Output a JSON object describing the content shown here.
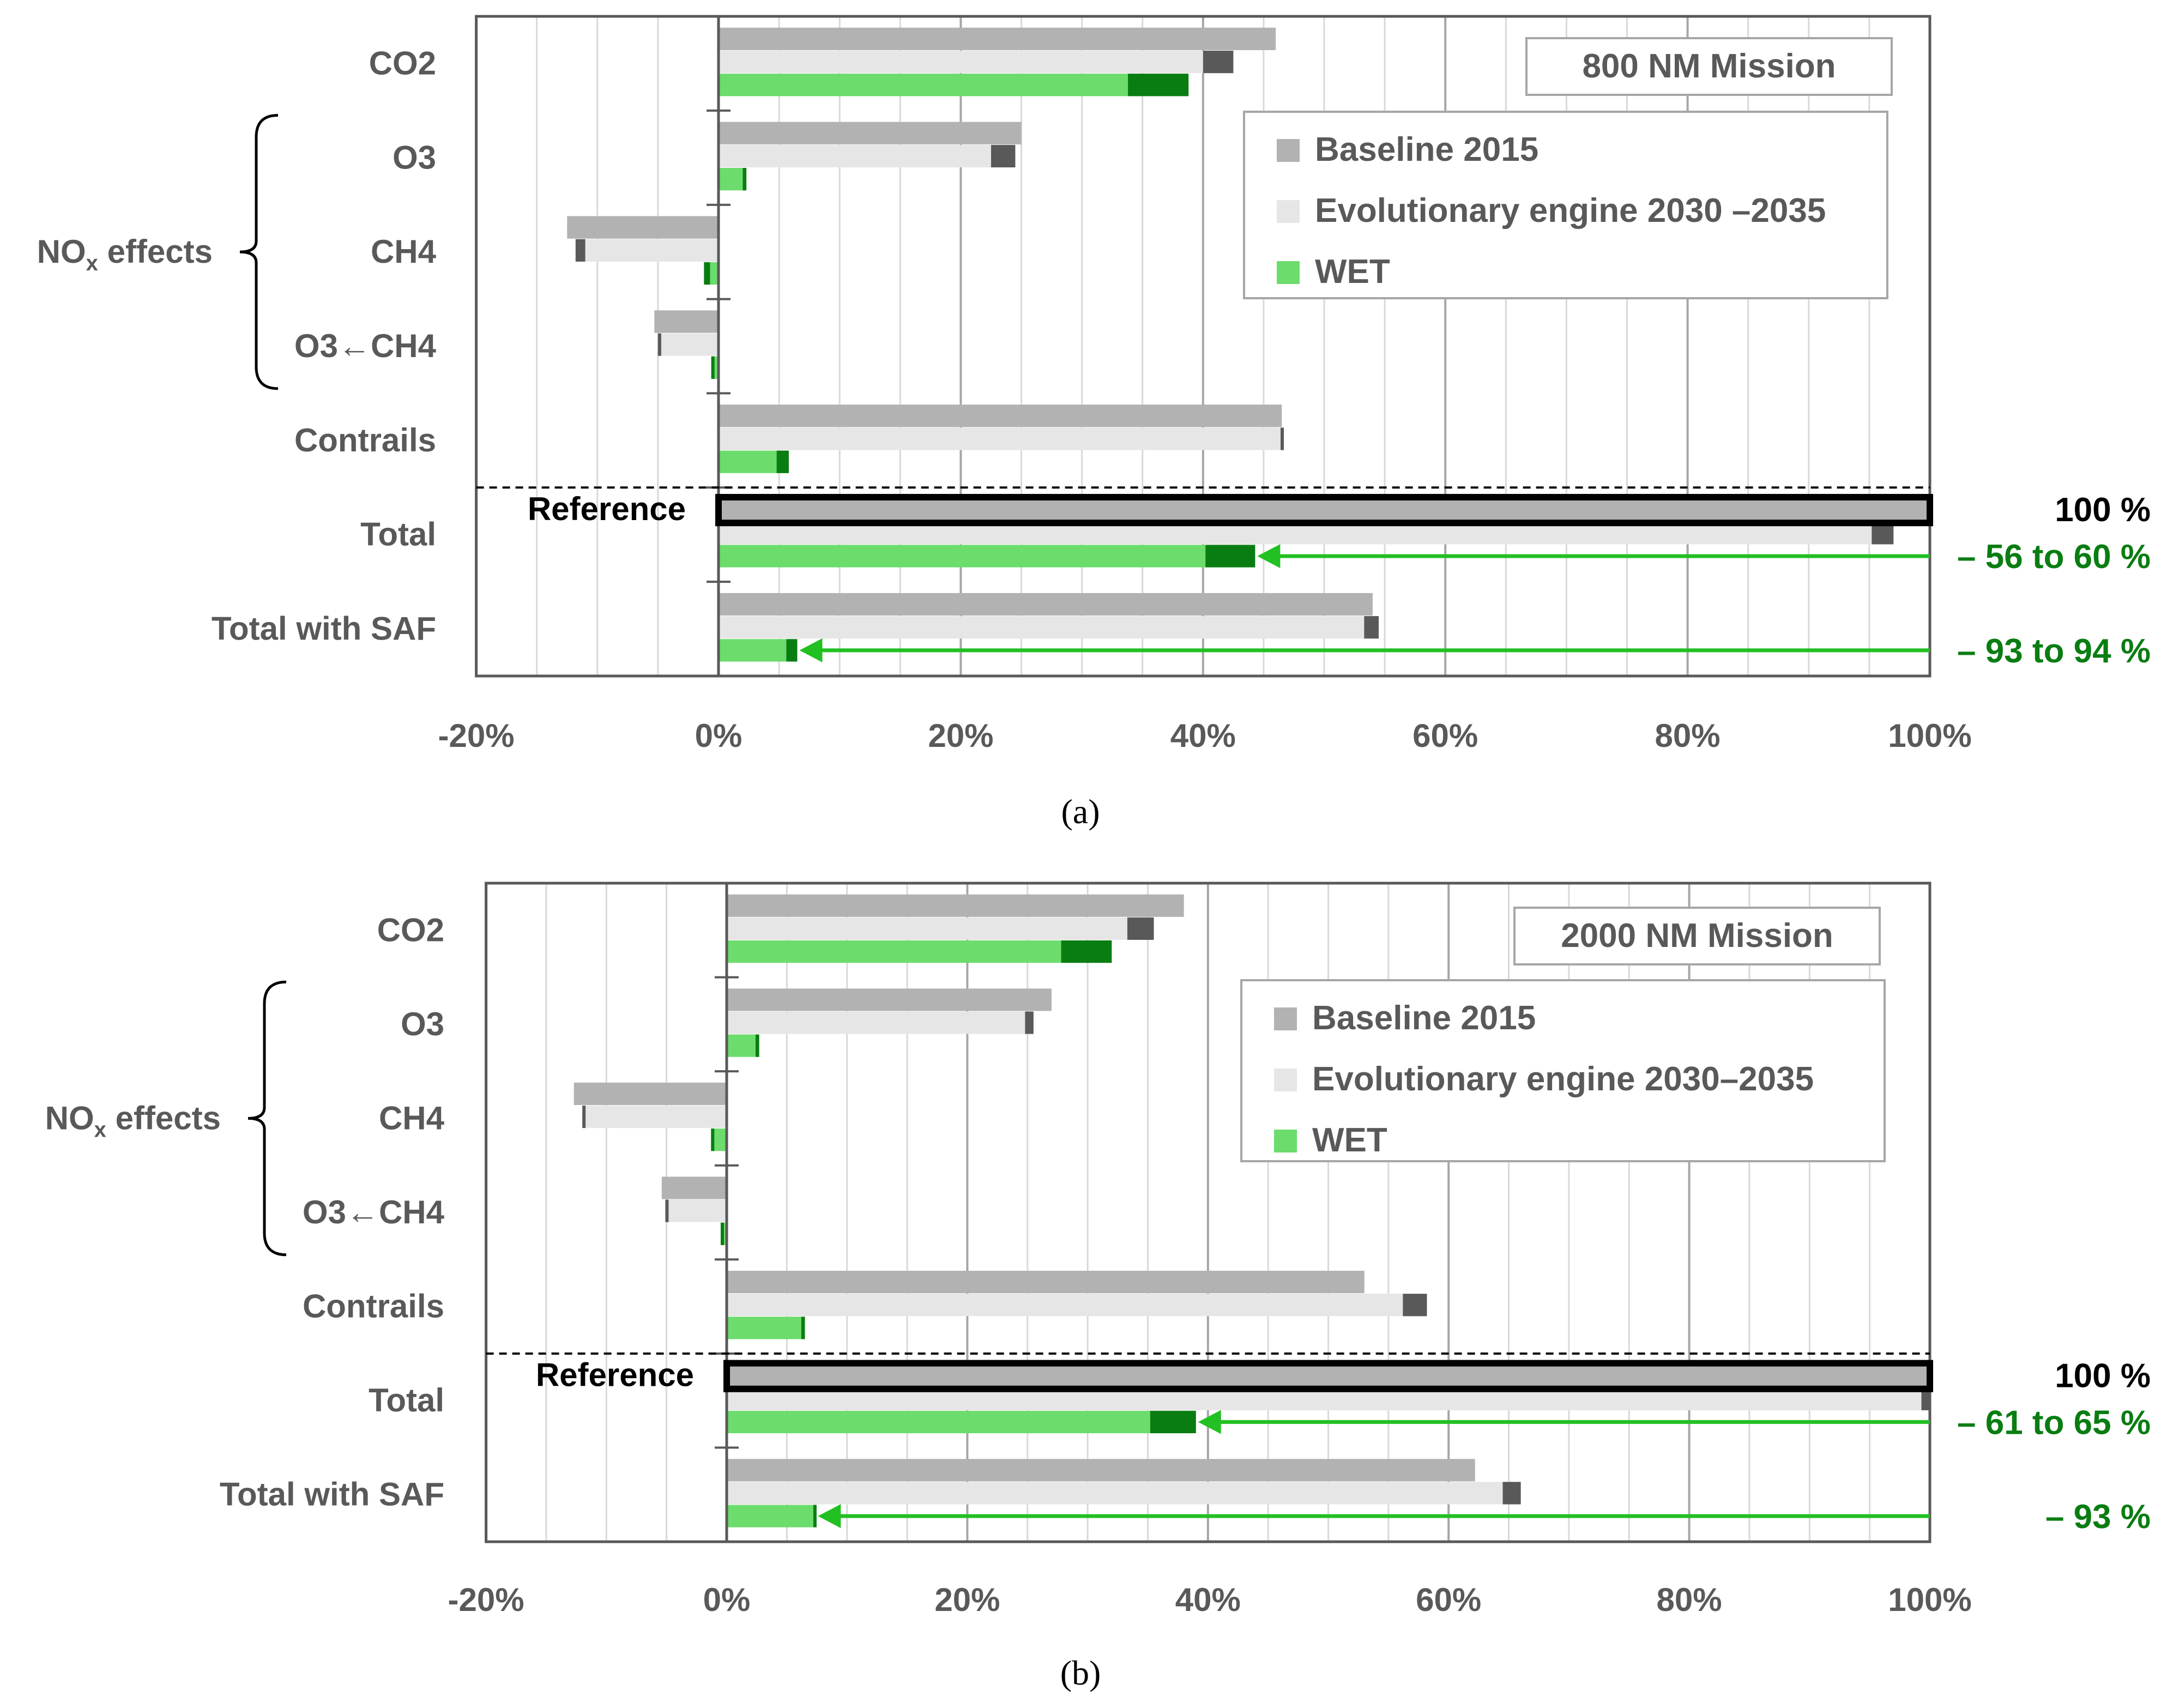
{
  "colors": {
    "baseline": "#b2b2b2",
    "baseline_unc": "#595959",
    "evolutionary": "#e6e6e6",
    "wet": "#6cdc6c",
    "wet_unc": "#0a7d12",
    "arrow": "#22c022",
    "annotation_green": "#0a7d12",
    "axis_text": "#595959",
    "grid": "#d9d9d9",
    "grid_major": "#a6a6a6"
  },
  "icons": {
    "arrow": "arrow-left-icon",
    "brace": "curly-brace-icon"
  },
  "chart_data": [
    {
      "type": "bar",
      "orientation": "horizontal",
      "panel_label": "(a)",
      "title": "800 NM Mission",
      "xlim": [
        -0.2,
        1.0
      ],
      "xticks": [
        -0.2,
        0,
        0.2,
        0.4,
        0.6,
        0.8,
        1.0
      ],
      "xtick_labels": [
        "-20%",
        "0%",
        "20%",
        "40%",
        "60%",
        "80%",
        "100%"
      ],
      "categories": [
        "CO2",
        "O3",
        "CH4",
        "O3←CH4",
        "Contrails",
        "Total",
        "Total with SAF"
      ],
      "group_label": "NO",
      "group_label_sub": "x",
      "group_label_tail": " effects",
      "reference_label": "Reference",
      "series": [
        {
          "name": "Baseline 2015",
          "values": [
            0.46,
            0.25,
            -0.125,
            -0.053,
            0.465,
            1.0,
            0.54
          ],
          "uncertainty_low": [
            null,
            null,
            null,
            null,
            null,
            null,
            null
          ]
        },
        {
          "name": "Evolutionary engine 2030 –2035",
          "values": [
            0.425,
            0.245,
            -0.11,
            -0.048,
            0.466,
            0.97,
            0.545
          ],
          "uncertainty_low": [
            0.4,
            0.225,
            -0.118,
            -0.05,
            0.464,
            0.952,
            0.533
          ]
        },
        {
          "name": "WET",
          "values": [
            0.388,
            0.023,
            -0.007,
            -0.006,
            0.058,
            0.443,
            0.065
          ],
          "uncertainty_low": [
            0.338,
            0.02,
            -0.012,
            -0.005,
            0.048,
            0.402,
            0.056
          ]
        }
      ],
      "annotations": [
        {
          "category": "Total",
          "text": "100 %",
          "color": "black"
        },
        {
          "category": "Total",
          "text": "– 56 to 60 %",
          "arrow_to": 0.443
        },
        {
          "category": "Total with SAF",
          "text": "– 93 to 94 %",
          "arrow_to": 0.065
        }
      ]
    },
    {
      "type": "bar",
      "orientation": "horizontal",
      "panel_label": "(b)",
      "title": "2000 NM Mission",
      "xlim": [
        -0.2,
        1.0
      ],
      "xticks": [
        -0.2,
        0,
        0.2,
        0.4,
        0.6,
        0.8,
        1.0
      ],
      "xtick_labels": [
        "-20%",
        "0%",
        "20%",
        "40%",
        "60%",
        "80%",
        "100%"
      ],
      "categories": [
        "CO2",
        "O3",
        "CH4",
        "O3←CH4",
        "Contrails",
        "Total",
        "Total with SAF"
      ],
      "group_label": "NO",
      "group_label_sub": "x",
      "group_label_tail": " effects",
      "reference_label": "Reference",
      "series": [
        {
          "name": "Baseline 2015",
          "values": [
            0.38,
            0.27,
            -0.127,
            -0.054,
            0.53,
            1.0,
            0.622
          ],
          "uncertainty_low": [
            null,
            null,
            null,
            null,
            null,
            null,
            null
          ]
        },
        {
          "name": "Evolutionary engine 2030–2035",
          "values": [
            0.355,
            0.255,
            -0.118,
            -0.05,
            0.582,
            1.0,
            0.66
          ],
          "uncertainty_low": [
            0.333,
            0.248,
            -0.12,
            -0.051,
            0.562,
            0.993,
            0.645
          ]
        },
        {
          "name": "WET",
          "values": [
            0.32,
            0.027,
            -0.013,
            -0.005,
            0.065,
            0.39,
            0.074
          ],
          "uncertainty_low": [
            0.278,
            0.024,
            -0.011,
            -0.004,
            0.062,
            0.352,
            0.072
          ]
        }
      ],
      "annotations": [
        {
          "category": "Total",
          "text": "100 %",
          "color": "black"
        },
        {
          "category": "Total",
          "text": "– 61 to 65 %",
          "arrow_to": 0.39
        },
        {
          "category": "Total with SAF",
          "text": "– 93 %",
          "arrow_to": 0.074
        }
      ]
    }
  ]
}
